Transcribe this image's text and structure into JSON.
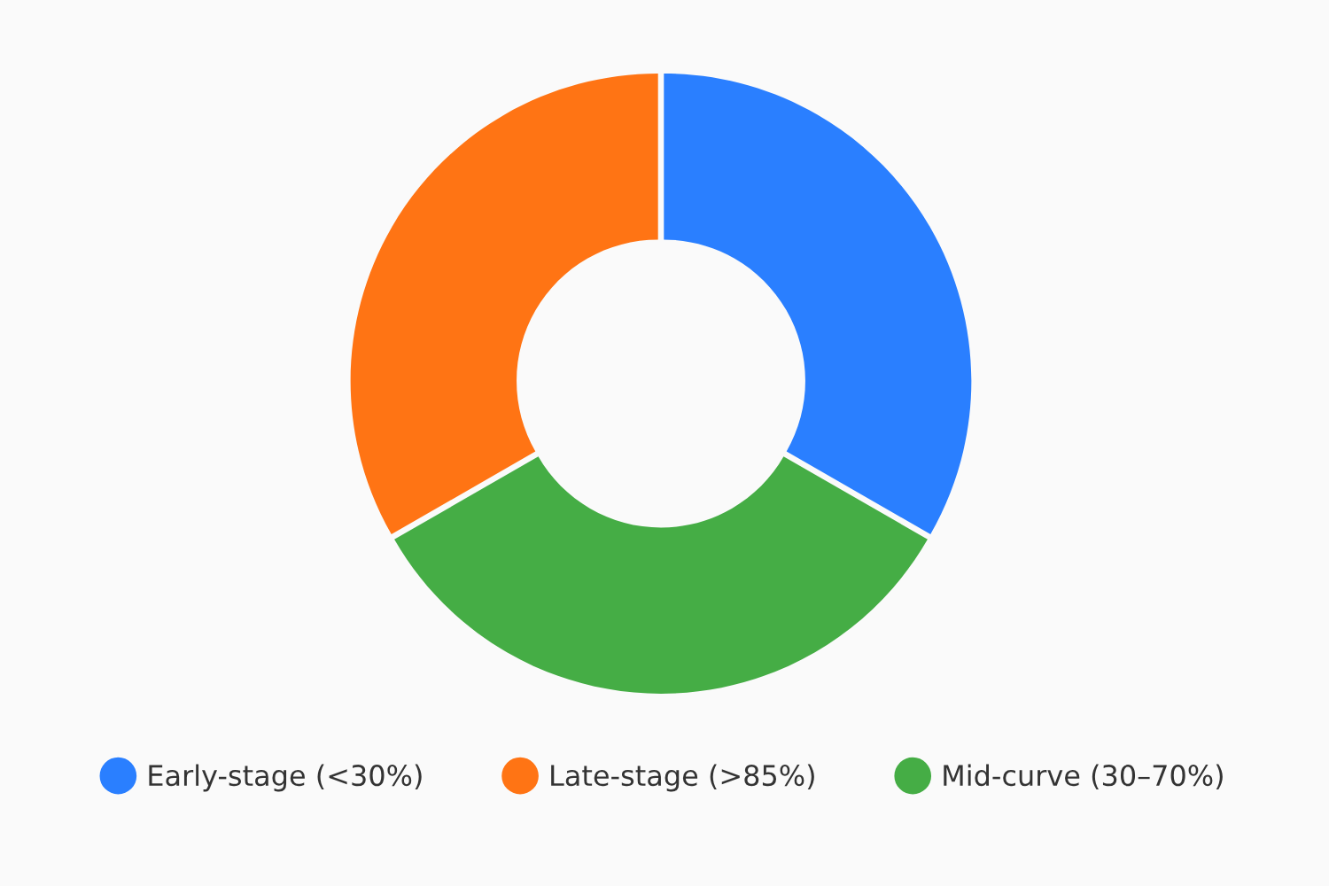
{
  "chart_data": {
    "type": "donut",
    "categories": [
      "Early-stage (<30%)",
      "Late-stage (>85%)",
      "Mid-curve (30–70%)"
    ],
    "values": [
      33.3,
      33.3,
      33.4
    ],
    "colors": [
      "#2a7fff",
      "#ff7414",
      "#45ad45"
    ],
    "legend": "bottom"
  }
}
